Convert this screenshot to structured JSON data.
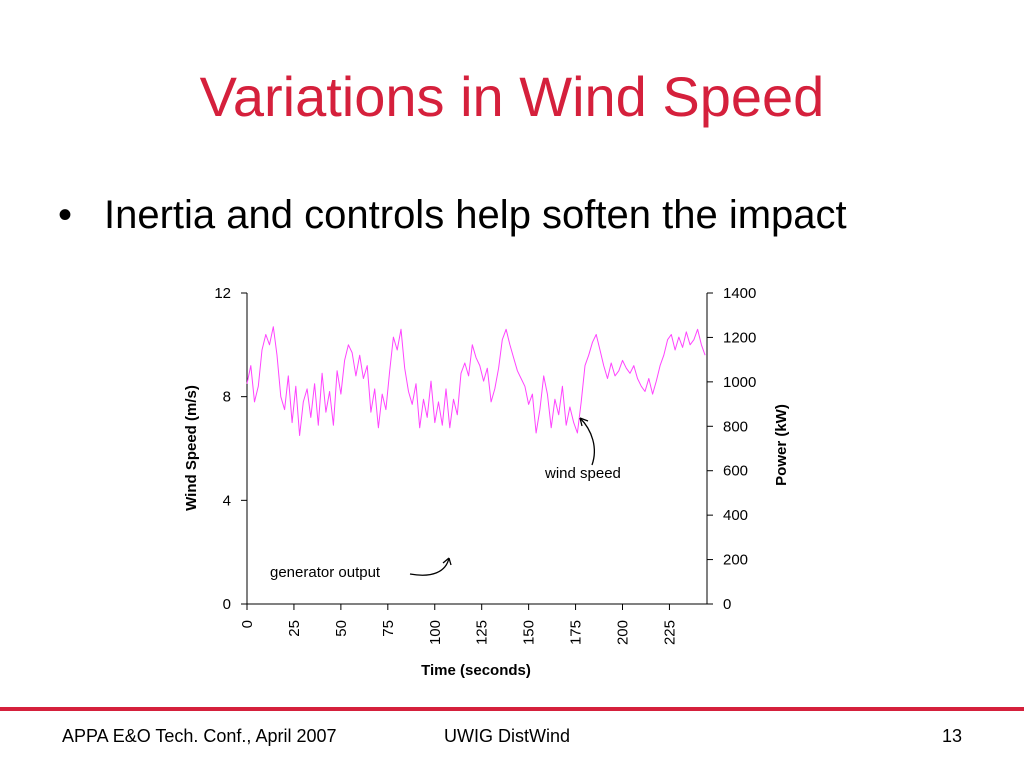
{
  "slide": {
    "title": "Variations in Wind Speed",
    "bullet": "Inertia and controls help soften the impact",
    "bullet_marker": "•"
  },
  "footer": {
    "left": "APPA E&O Tech. Conf., April 2007",
    "center": "UWIG DistWind",
    "page_number": "13"
  },
  "colors": {
    "title": "#d5203c",
    "wind_speed_line": "#ff44ff",
    "rule": "#d5203c"
  },
  "chart_data": {
    "type": "line",
    "xlabel": "Time (seconds)",
    "ylabel": "Wind Speed (m/s)",
    "y2label": "Power (kW)",
    "xlim": [
      0,
      245
    ],
    "ylim": [
      0,
      12
    ],
    "y2lim": [
      0,
      1400
    ],
    "xticks": [
      0,
      25,
      50,
      75,
      100,
      125,
      150,
      175,
      200,
      225
    ],
    "yticks": [
      0,
      4,
      8,
      12
    ],
    "y2ticks": [
      0,
      200,
      400,
      600,
      800,
      1000,
      1200,
      1400
    ],
    "grid": false,
    "annotations": [
      {
        "text": "wind speed",
        "series": "wind_speed"
      },
      {
        "text": "generator output",
        "series": "generator_output"
      }
    ],
    "series": [
      {
        "key": "wind_speed",
        "axis": "left",
        "x": [
          0,
          2,
          4,
          6,
          8,
          10,
          12,
          14,
          16,
          18,
          20,
          22,
          24,
          26,
          28,
          30,
          32,
          34,
          36,
          38,
          40,
          42,
          44,
          46,
          48,
          50,
          52,
          54,
          56,
          58,
          60,
          62,
          64,
          66,
          68,
          70,
          72,
          74,
          76,
          78,
          80,
          82,
          84,
          86,
          88,
          90,
          92,
          94,
          96,
          98,
          100,
          102,
          104,
          106,
          108,
          110,
          112,
          114,
          116,
          118,
          120,
          122,
          124,
          126,
          128,
          130,
          132,
          134,
          136,
          138,
          140,
          142,
          144,
          146,
          148,
          150,
          152,
          154,
          156,
          158,
          160,
          162,
          164,
          166,
          168,
          170,
          172,
          174,
          176,
          178,
          180,
          182,
          184,
          186,
          188,
          190,
          192,
          194,
          196,
          198,
          200,
          202,
          204,
          206,
          208,
          210,
          212,
          214,
          216,
          218,
          220,
          222,
          224,
          226,
          228,
          230,
          232,
          234,
          236,
          238,
          240,
          242,
          244
        ],
        "y": [
          8.5,
          9.2,
          7.8,
          8.4,
          9.8,
          10.4,
          10.0,
          10.7,
          9.6,
          8.0,
          7.5,
          8.8,
          7.0,
          8.4,
          6.5,
          7.8,
          8.3,
          7.2,
          8.5,
          6.9,
          8.9,
          7.4,
          8.2,
          6.9,
          9.0,
          8.1,
          9.4,
          10.0,
          9.7,
          8.8,
          9.6,
          8.7,
          9.2,
          7.4,
          8.3,
          6.8,
          8.1,
          7.5,
          9.0,
          10.3,
          9.8,
          10.6,
          9.1,
          8.2,
          7.7,
          8.5,
          6.8,
          7.9,
          7.2,
          8.6,
          7.0,
          7.8,
          6.9,
          8.3,
          6.8,
          7.9,
          7.3,
          8.9,
          9.3,
          8.8,
          10.0,
          9.5,
          9.2,
          8.6,
          9.1,
          7.8,
          8.3,
          9.1,
          10.2,
          10.6,
          10.0,
          9.5,
          9.0,
          8.7,
          8.4,
          7.7,
          8.1,
          6.6,
          7.5,
          8.8,
          8.1,
          6.8,
          7.9,
          7.3,
          8.4,
          6.9,
          7.6,
          7.0,
          6.6,
          7.8,
          9.2,
          9.6,
          10.1,
          10.4,
          9.8,
          9.2,
          8.7,
          9.3,
          8.8,
          9.0,
          9.4,
          9.1,
          8.9,
          9.2,
          8.7,
          8.4,
          8.2,
          8.7,
          8.1,
          8.6,
          9.2,
          9.6,
          10.2,
          10.4,
          9.8,
          10.3,
          9.9,
          10.5,
          10.0,
          10.2,
          10.6,
          10.0,
          9.6
        ]
      }
    ]
  }
}
